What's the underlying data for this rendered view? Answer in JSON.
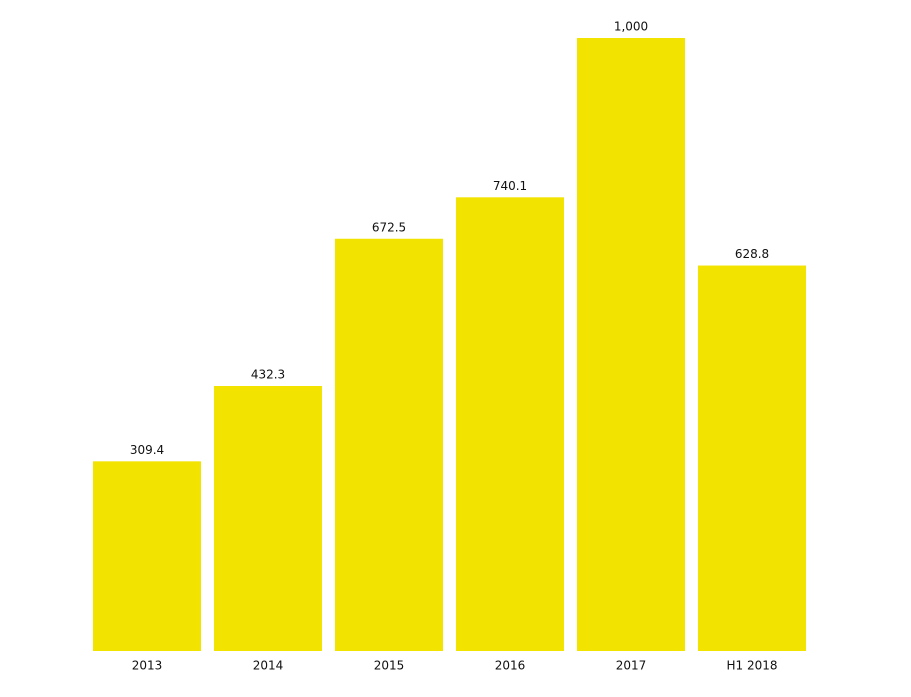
{
  "chart_data": {
    "type": "bar",
    "categories": [
      "2013",
      "2014",
      "2015",
      "2016",
      "2017",
      "H1 2018"
    ],
    "values": [
      309.4,
      432.3,
      672.5,
      740.1,
      1000,
      628.8
    ],
    "value_labels": [
      "309.4",
      "432.3",
      "672.5",
      "740.1",
      "1,000",
      "628.8"
    ],
    "color": "#f2e400"
  }
}
